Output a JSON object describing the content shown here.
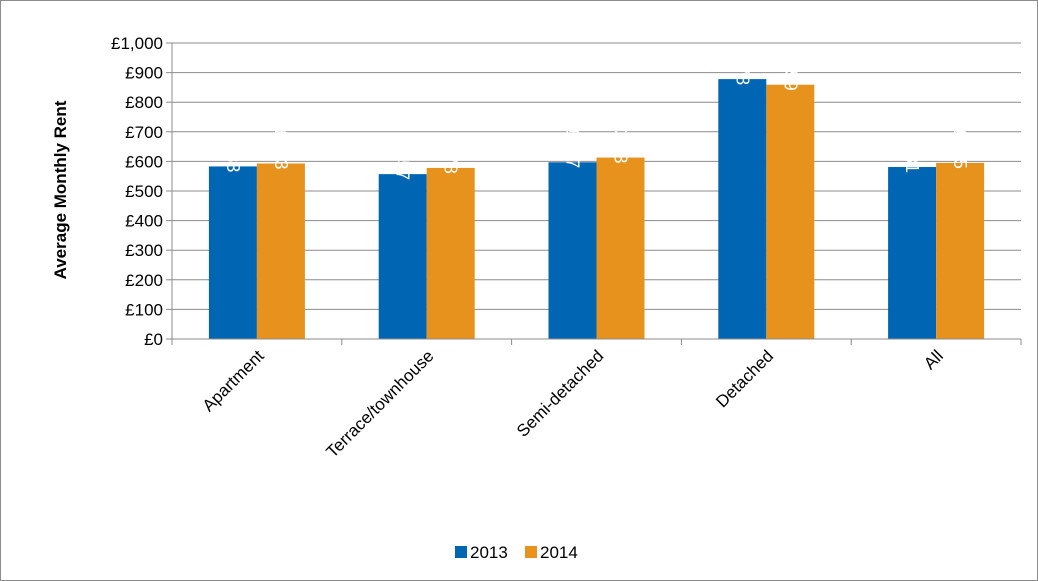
{
  "chart_data": {
    "type": "bar",
    "title": "",
    "xlabel": "",
    "ylabel": "Average Monthly Rent",
    "categories": [
      "Apartment",
      "Terrace/townhouse",
      "Semi-detached",
      "Detached",
      "All"
    ],
    "series": [
      {
        "name": "2013",
        "color": "#0066b3",
        "values": [
          583,
          557,
          597,
          878,
          581
        ],
        "labels": [
          "£583",
          "£557",
          "£597",
          "£878",
          "£581"
        ]
      },
      {
        "name": "2014",
        "color": "#e8921e",
        "values": [
          593,
          578,
          613,
          859,
          595
        ],
        "labels": [
          "£593",
          "£578",
          "£613",
          "£859",
          "£595"
        ]
      }
    ],
    "ylim": [
      0,
      1000
    ],
    "yticks": [
      0,
      100,
      200,
      300,
      400,
      500,
      600,
      700,
      800,
      900,
      1000
    ],
    "ytick_labels": [
      "£0",
      "£100",
      "£200",
      "£300",
      "£400",
      "£500",
      "£600",
      "£700",
      "£800",
      "£900",
      "£1,000"
    ],
    "grid": true,
    "legend_position": "bottom"
  }
}
